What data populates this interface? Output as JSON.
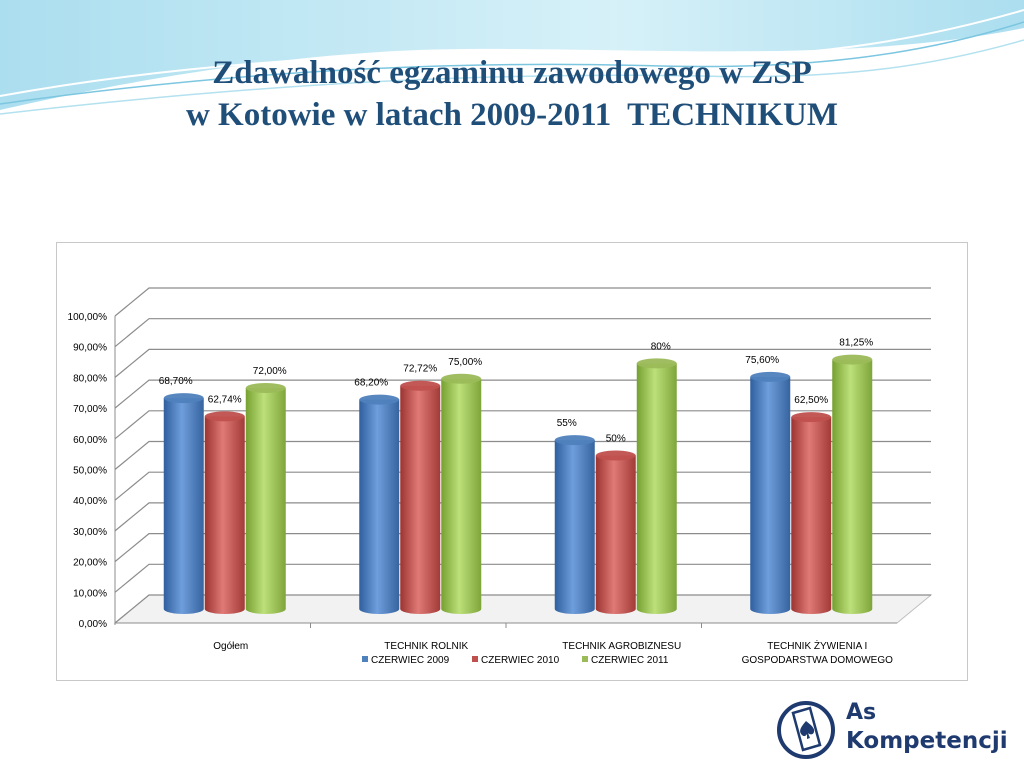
{
  "slide": {
    "title_line1": "Zdawalność egzaminu zawodowego w ZSP",
    "title_line2": "w Kotowie w latach 2009-2011  TECHNIKUM"
  },
  "logo": {
    "line1": "As",
    "line2": "Kompetencji",
    "icon": "spade-card-icon"
  },
  "colors": {
    "title": "#1f4e79",
    "series": [
      "#4f81bd",
      "#c0504d",
      "#9bbb59"
    ]
  },
  "chart_data": {
    "type": "bar",
    "title": "",
    "xlabel": "",
    "ylabel": "",
    "ylim": [
      0,
      100
    ],
    "yticks": [
      "0,00%",
      "10,00%",
      "20,00%",
      "30,00%",
      "40,00%",
      "50,00%",
      "60,00%",
      "70,00%",
      "80,00%",
      "90,00%",
      "100,00%"
    ],
    "categories": [
      [
        "Ogółem"
      ],
      [
        "TECHNIK ROLNIK"
      ],
      [
        "TECHNIK AGROBIZNESU"
      ],
      [
        "TECHNIK ŻYWIENIA  I",
        "GOSPODARSTWA DOMOWEGO"
      ]
    ],
    "series": [
      {
        "name": "CZERWIEC 2009",
        "values": [
          68.7,
          68.2,
          55,
          75.6
        ],
        "labels": [
          "68,70%",
          "68,20%",
          "55%",
          "75,60%"
        ]
      },
      {
        "name": "CZERWIEC 2010",
        "values": [
          62.74,
          72.72,
          50,
          62.5
        ],
        "labels": [
          "62,74%",
          "72,72%",
          "50%",
          "62,50%"
        ]
      },
      {
        "name": "CZERWIEC 2011",
        "values": [
          72,
          75,
          80,
          81.25
        ],
        "labels": [
          "72,00%",
          "75,00%",
          "80%",
          "81,25%"
        ]
      }
    ],
    "grid": true,
    "legend": "bottom"
  }
}
